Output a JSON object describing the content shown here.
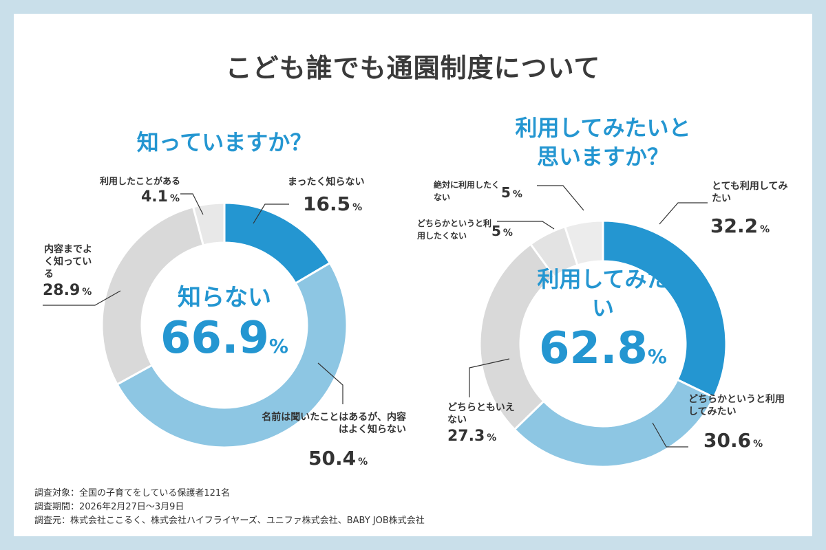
{
  "title": "こども誰でも通園制度について",
  "colors": {
    "background": "#c9dfea",
    "dark_blue": "#2496d1",
    "light_blue": "#8dc6e3",
    "gray": "#d9d9d9",
    "light_gray": "#e8e8e8"
  },
  "chart_data": [
    {
      "type": "pie",
      "donut": true,
      "title": "知っていますか？",
      "center_label": "知らない",
      "center_value": "66.9",
      "center_unit": "%",
      "slices": [
        {
          "label": "まったく知らない",
          "value": 16.5,
          "color": "#2496d1"
        },
        {
          "label": "名前は聞いたことはあるが、内容はよく知らない",
          "value": 50.4,
          "color": "#8dc6e3"
        },
        {
          "label": "内容までよく知っている",
          "value": 28.9,
          "color": "#d9d9d9"
        },
        {
          "label": "利用したことがある",
          "value": 4.1,
          "color": "#e8e8e8"
        }
      ]
    },
    {
      "type": "pie",
      "donut": true,
      "title": "利用してみたいと思いますか？",
      "center_label": "利用してみたい",
      "center_value": "62.8",
      "center_unit": "%",
      "slices": [
        {
          "label": "とても利用してみたい",
          "value": 32.2,
          "color": "#2496d1"
        },
        {
          "label": "どちらかというと利用してみたい",
          "value": 30.6,
          "color": "#8dc6e3"
        },
        {
          "label": "どちらともいえない",
          "value": 27.3,
          "color": "#d9d9d9"
        },
        {
          "label": "どちらかというと利用したくない",
          "value": 5.0,
          "color": "#e3e3e3"
        },
        {
          "label": "絶対に利用したくない",
          "value": 5.0,
          "color": "#ececec"
        }
      ]
    }
  ],
  "unit": "%",
  "footer": [
    "調査対象：全国の子育てをしている保護者121名",
    "調査期間：2026年2月27日～3月9日",
    "調査元：株式会社ここるく、株式会社ハイフライヤーズ、ユニファ株式会社、BABY JOB株式会社"
  ]
}
